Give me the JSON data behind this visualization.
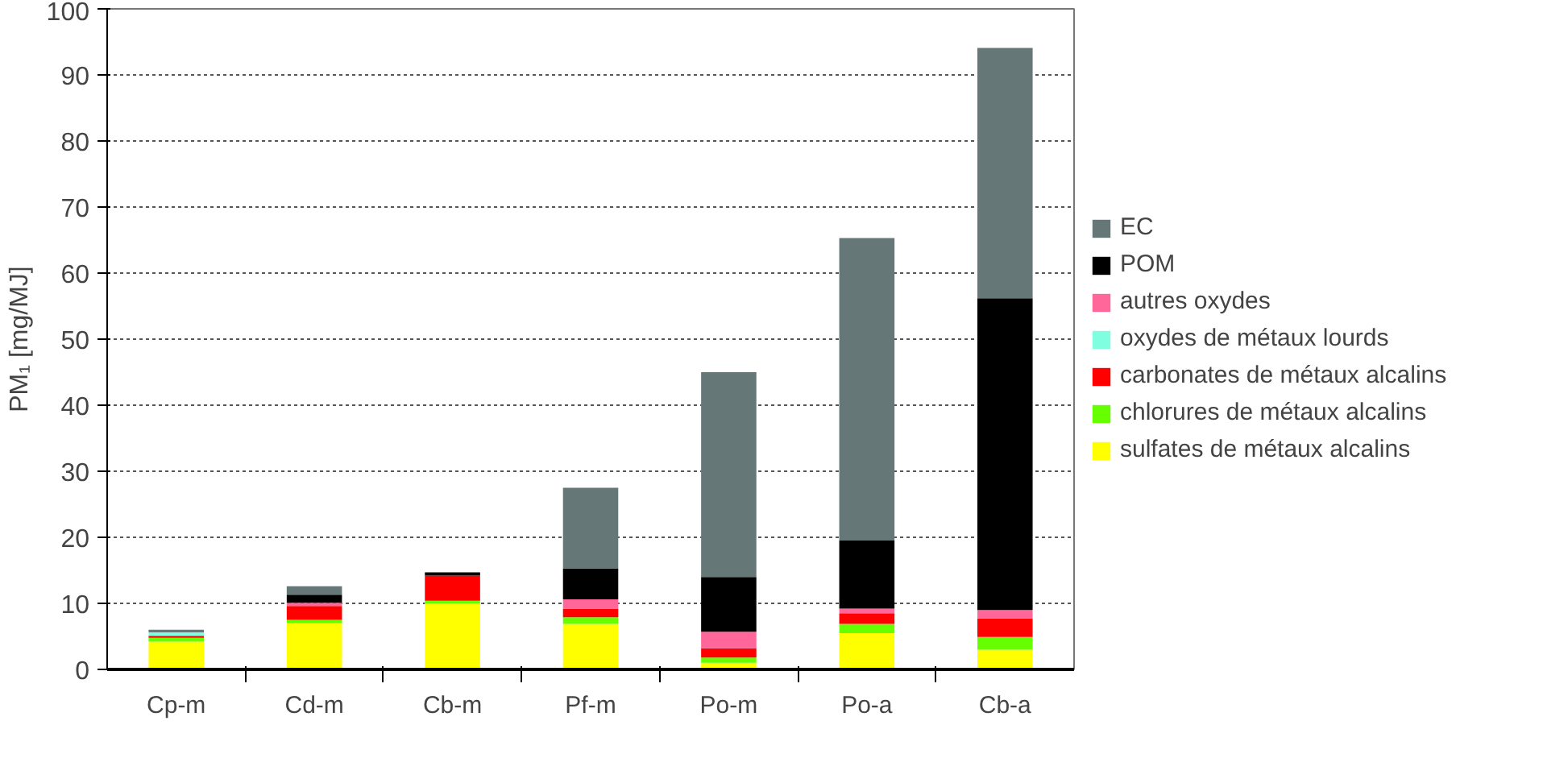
{
  "chart_data": {
    "type": "bar",
    "stacked": true,
    "ylabel": "PM₁ [mg/MJ]",
    "categories": [
      "Cp-m",
      "Cd-m",
      "Cb-m",
      "Pf-m",
      "Po-m",
      "Po-a",
      "Cb-a"
    ],
    "ylim": [
      0,
      100
    ],
    "yticks": [
      0,
      10,
      20,
      30,
      40,
      50,
      60,
      70,
      80,
      90,
      100
    ],
    "grid": "y",
    "legend": "right",
    "series": [
      {
        "name": "sulfates de métaux alcalins",
        "color": "#ffff00",
        "values": [
          4.2,
          7.0,
          10.0,
          6.9,
          1.0,
          5.5,
          3.0
        ]
      },
      {
        "name": "chlorures de métaux alcalins",
        "color": "#66ff00",
        "values": [
          0.6,
          0.5,
          0.4,
          1.0,
          0.8,
          1.4,
          1.9
        ]
      },
      {
        "name": "carbonates de métaux alcalins",
        "color": "#ff0000",
        "values": [
          0.3,
          2.1,
          3.8,
          1.3,
          1.4,
          1.6,
          2.8
        ]
      },
      {
        "name": "oxydes de métaux lourds",
        "color": "#80ffe0",
        "values": [
          0.5,
          0,
          0,
          0,
          0,
          0,
          0
        ]
      },
      {
        "name": "autres oxydes",
        "color": "#ff6699",
        "values": [
          0,
          0.5,
          0,
          1.4,
          2.5,
          0.7,
          1.3
        ]
      },
      {
        "name": "POM",
        "color": "#000000",
        "values": [
          0,
          1.2,
          0.5,
          4.7,
          8.3,
          10.3,
          47.2
        ]
      },
      {
        "name": "EC",
        "color": "#667777",
        "values": [
          0.4,
          1.3,
          0,
          12.2,
          31.0,
          45.8,
          37.9
        ]
      }
    ]
  }
}
